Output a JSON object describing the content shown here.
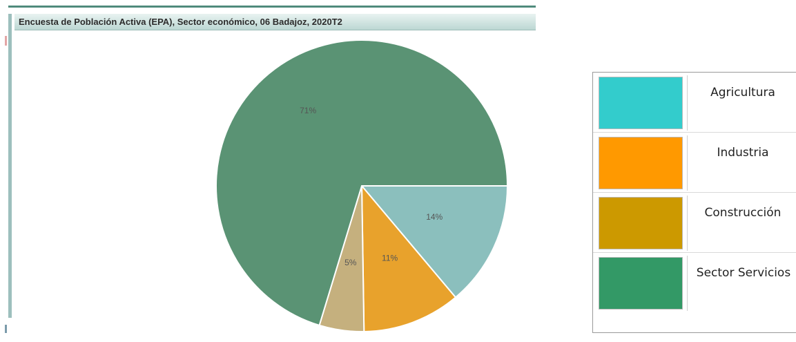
{
  "title": "Encuesta de Población Activa (EPA), Sector económico, 06 Badajoz, 2020T2",
  "chart_data": {
    "type": "pie",
    "title": "Encuesta de Población Activa (EPA), Sector económico, 06 Badajoz, 2020T2",
    "slices": [
      {
        "label": "Agricultura",
        "value": 14,
        "display": "14%",
        "color": "#8bbfbd"
      },
      {
        "label": "Industria",
        "value": 11,
        "display": "11%",
        "color": "#e8a22c"
      },
      {
        "label": "Construcción",
        "value": 5,
        "display": "5%",
        "color": "#c5b07e"
      },
      {
        "label": "Sector Servicios",
        "value": 71,
        "display": "71%",
        "color": "#5a9374"
      }
    ],
    "legend": [
      {
        "label": "Agricultura",
        "color": "#33cccc"
      },
      {
        "label": "Industria",
        "color": "#ff9900"
      },
      {
        "label": "Construcción",
        "color": "#cc9900"
      },
      {
        "label": "Sector Servicios",
        "color": "#339966"
      }
    ],
    "legend_position": "right"
  }
}
